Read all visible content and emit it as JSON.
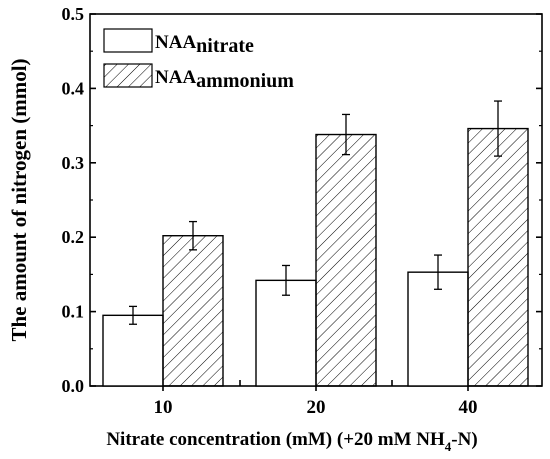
{
  "chart_data": {
    "type": "bar",
    "title": "",
    "xlabel": "Nitrate concentration (mM) (+20 mM  NH4-N)",
    "xlabel_parts": {
      "main": "Nitrate concentration (mM) (+20 mM  NH",
      "subscript": "4",
      "tail": "-N)"
    },
    "ylabel": "The amount of nitrogen (mmol)",
    "categories": [
      "10",
      "20",
      "40"
    ],
    "ylim": [
      0,
      0.5
    ],
    "yticks": [
      "0.0",
      "0.1",
      "0.2",
      "0.3",
      "0.4",
      "0.5"
    ],
    "series": [
      {
        "name": "NAAnitrate",
        "legend_main": "NAA",
        "legend_sub": "nitrate",
        "pattern": "plain",
        "values": [
          0.095,
          0.142,
          0.153
        ],
        "errors": [
          0.012,
          0.02,
          0.023
        ]
      },
      {
        "name": "NAAammonium",
        "legend_main": "NAA",
        "legend_sub": "ammonium",
        "pattern": "hatched",
        "values": [
          0.202,
          0.338,
          0.346
        ],
        "errors": [
          0.019,
          0.027,
          0.037
        ]
      }
    ],
    "legend_position": "top-left",
    "grid": false
  }
}
